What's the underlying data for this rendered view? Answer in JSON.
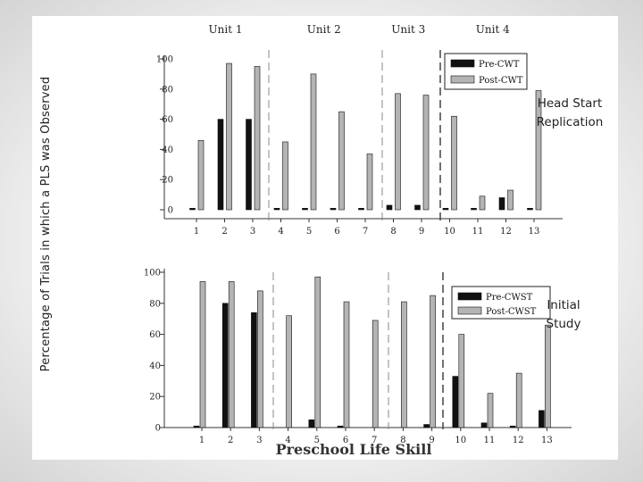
{
  "slide": {
    "ylabel": "Percentage of Trials in which a PLS was Observed",
    "xlabel": "Preschool Life Skill",
    "top_side_label_line1": "Head Start",
    "top_side_label_line2": "Replication",
    "bottom_side_label_line1": "Initial",
    "bottom_side_label_line2": "Study"
  },
  "chart_data": [
    {
      "type": "bar",
      "panel": "Head Start Replication",
      "units": [
        {
          "label": "Unit 1",
          "first": 1,
          "last": 3
        },
        {
          "label": "Unit 2",
          "first": 4,
          "last": 7
        },
        {
          "label": "Unit 3",
          "first": 8,
          "last": 9
        },
        {
          "label": "Unit 4",
          "first": 10,
          "last": 13
        }
      ],
      "categories": [
        "1",
        "2",
        "3",
        "4",
        "5",
        "6",
        "7",
        "8",
        "9",
        "10",
        "11",
        "12",
        "13"
      ],
      "series": [
        {
          "name": "Pre-CWT",
          "color": "#111111",
          "values": [
            1,
            60,
            60,
            1,
            1,
            1,
            1,
            3,
            3,
            1,
            1,
            8,
            1
          ]
        },
        {
          "name": "Post-CWT",
          "color": "#b4b4b4",
          "values": [
            46,
            97,
            95,
            45,
            90,
            65,
            37,
            77,
            76,
            62,
            9,
            13,
            79
          ]
        }
      ],
      "yticks": [
        0,
        20,
        40,
        60,
        80,
        100
      ],
      "ylim": [
        0,
        100
      ],
      "legend": "top-right"
    },
    {
      "type": "bar",
      "panel": "Initial Study",
      "categories": [
        "1",
        "2",
        "3",
        "4",
        "5",
        "6",
        "7",
        "8",
        "9",
        "10",
        "11",
        "12",
        "13"
      ],
      "series": [
        {
          "name": "Pre-CWST",
          "color": "#111111",
          "values": [
            1,
            80,
            74,
            0,
            5,
            1,
            0,
            0,
            2,
            33,
            3,
            1,
            11
          ]
        },
        {
          "name": "Post-CWST",
          "color": "#b4b4b4",
          "values": [
            94,
            94,
            88,
            72,
            97,
            81,
            69,
            81,
            85,
            60,
            22,
            35,
            66
          ]
        }
      ],
      "yticks": [
        0,
        20,
        40,
        60,
        80,
        100
      ],
      "ylim": [
        0,
        100
      ],
      "legend": "top-right"
    }
  ]
}
